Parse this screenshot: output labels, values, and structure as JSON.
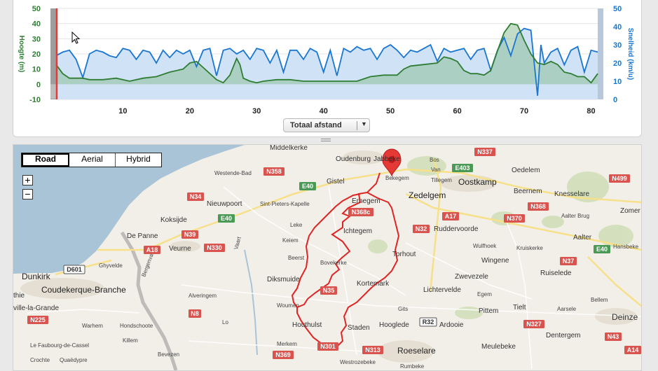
{
  "chart": {
    "left_axis_title": "Hoogte (m)",
    "right_axis_title": "Snelheid (km/u)",
    "left_ticks": [
      "50",
      "40",
      "30",
      "20",
      "10",
      "0",
      "-10"
    ],
    "right_ticks": [
      "50",
      "40",
      "30",
      "20",
      "10",
      "0"
    ],
    "x_ticks": [
      "10",
      "20",
      "30",
      "40",
      "50",
      "60",
      "70",
      "80"
    ],
    "x_selector_label": "Totaal afstand",
    "colors": {
      "elevation": "#2e7d32",
      "speed": "#1976d2",
      "cursor": "#e53935"
    }
  },
  "chart_data": {
    "type": "area",
    "xlabel": "Totaal afstand",
    "x_range": [
      0,
      81
    ],
    "y_left_range": [
      -10,
      50
    ],
    "y_right_range": [
      0,
      50
    ],
    "series": [
      {
        "name": "Hoogte (m)",
        "x": [
          0,
          1,
          2,
          4,
          5,
          7,
          9,
          11,
          13,
          15,
          17,
          19,
          20,
          21,
          22,
          24,
          25,
          26,
          27,
          27.5,
          28,
          29,
          30,
          31,
          33,
          35,
          37,
          39,
          41,
          43,
          45,
          47,
          49,
          50,
          51,
          52,
          53,
          55,
          57,
          58,
          59,
          60,
          61,
          62,
          63,
          64,
          65,
          66,
          67,
          68,
          69,
          70,
          71,
          72,
          73,
          74,
          75,
          76,
          77,
          78,
          79,
          80,
          81
        ],
        "y": [
          13,
          7,
          4,
          4,
          3,
          3,
          4,
          2,
          4,
          5,
          8,
          10,
          14,
          15,
          11,
          3,
          1,
          6,
          17,
          13,
          4,
          2,
          1,
          2,
          3,
          3,
          2,
          2,
          2,
          2,
          2,
          5,
          6,
          6,
          6,
          10,
          12,
          13,
          14,
          18,
          17,
          15,
          9,
          7,
          7,
          6,
          9,
          22,
          34,
          40,
          39,
          29,
          20,
          14,
          13,
          15,
          13,
          8,
          7,
          5,
          5,
          1,
          7
        ]
      },
      {
        "name": "Snelheid (km/u)",
        "x": [
          0,
          1,
          2,
          3,
          4,
          5,
          6,
          7,
          8,
          9,
          10,
          11,
          12,
          13,
          14,
          15,
          16,
          17,
          18,
          19,
          20,
          21,
          22,
          23,
          24,
          25,
          26,
          27,
          28,
          29,
          30,
          31,
          32,
          33,
          34,
          35,
          36,
          37,
          38,
          39,
          40,
          41,
          42,
          43,
          44,
          45,
          46,
          47,
          48,
          49,
          50,
          51,
          52,
          53,
          54,
          55,
          56,
          57,
          58,
          59,
          60,
          61,
          62,
          63,
          64,
          65,
          66,
          67,
          68,
          69,
          70,
          71,
          72,
          72.5,
          73,
          74,
          75,
          76,
          77,
          78,
          79,
          80,
          81
        ],
        "y": [
          24,
          26,
          27,
          22,
          12,
          25,
          27,
          26,
          24,
          23,
          28,
          27,
          22,
          27,
          26,
          20,
          27,
          23,
          27,
          25,
          27,
          18,
          27,
          28,
          13,
          27,
          28,
          25,
          27,
          22,
          28,
          27,
          20,
          27,
          15,
          27,
          27,
          22,
          28,
          26,
          15,
          27,
          13,
          28,
          26,
          29,
          27,
          28,
          22,
          28,
          30,
          27,
          23,
          27,
          26,
          28,
          30,
          21,
          28,
          26,
          27,
          28,
          22,
          27,
          28,
          16,
          27,
          34,
          24,
          36,
          39,
          38,
          2,
          30,
          20,
          26,
          28,
          19,
          27,
          29,
          15,
          27,
          26
        ]
      }
    ],
    "cursor_x": 0
  },
  "map": {
    "modes": [
      "Road",
      "Aerial",
      "Hybrid"
    ],
    "active_mode": "Road",
    "zoom_in": "+",
    "zoom_out": "−",
    "pin_label": "Bekegem",
    "route_color": "#e02424",
    "towns": [
      "Middelkerke",
      "Oudenburg",
      "Jabbeke",
      "Bos",
      "Van",
      "Tillegem",
      "Oostkamp",
      "Oedelem",
      "Westende-Bad",
      "Gistel",
      "Zedelgem",
      "Beernem",
      "Knesselare",
      "Nieuwpoort",
      "Sint-Pieters-Kapelle",
      "Ernegem",
      "Aalter Brug",
      "Zomer",
      "Koksijde",
      "Leke",
      "Ichtegem",
      "Ruddervoorde",
      "Aalter",
      "De Panne",
      "Veurne",
      "Keiem",
      "Wulfhoek",
      "Kruiskerke",
      "Hansbeke",
      "Beerst",
      "Torhout",
      "Wingene",
      "Ghyvelde",
      "Bovekerke",
      "Ruiselede",
      "Dunkirk",
      "Diksmuide",
      "Kortemark",
      "Lichtervelde",
      "Zwevezele",
      "Coudekerque-Branche",
      "Alveringem",
      "Egem",
      "Bellem",
      "Woumen",
      "Gits",
      "Pittem",
      "Tielt",
      "Aarsele",
      "Deinze",
      "ville-la-Grande",
      "Houthulst",
      "Staden",
      "Hooglede",
      "Ardooie",
      "Warhem",
      "Hondschoote",
      "Lo",
      "Killem",
      "Merkem",
      "Dentergem",
      "Le Faubourg-de-Cassel",
      "Meulebeke",
      "Crochte",
      "Quaëdypre",
      "Bevezen",
      "Roeselare",
      "Westrozebeke",
      "Rumbeke",
      "Bergenvaart",
      "thie",
      "Vaart"
    ],
    "roads": [
      "N337",
      "E403",
      "N358",
      "N499",
      "E40",
      "N34",
      "N368",
      "N368c",
      "E40",
      "A17",
      "N370",
      "N39",
      "N32",
      "N330",
      "A18",
      "E40",
      "D601",
      "N37",
      "N35",
      "N8",
      "N225",
      "R32",
      "N327",
      "N313",
      "N301",
      "N369",
      "N43",
      "A14"
    ]
  }
}
